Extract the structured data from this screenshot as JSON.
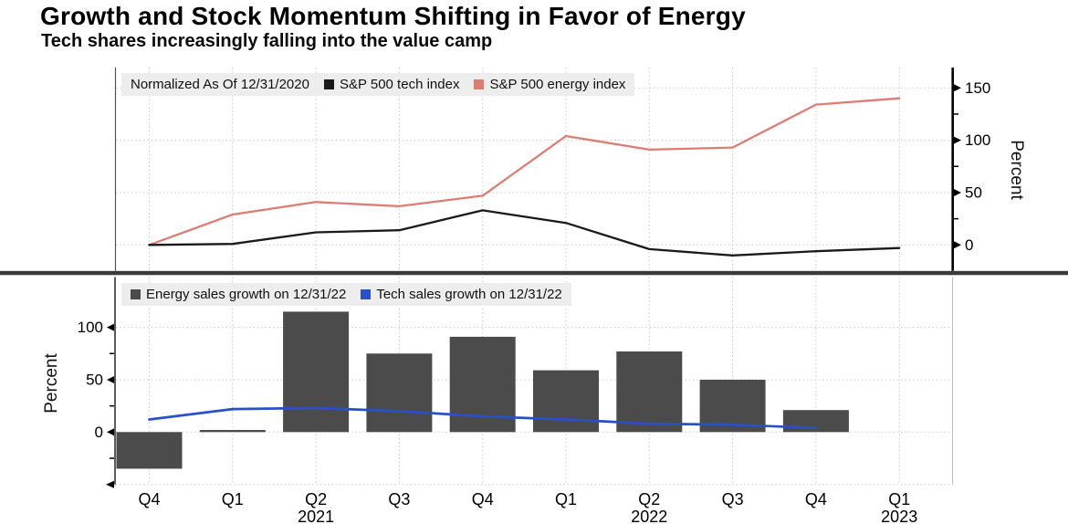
{
  "header": {
    "title": "Growth and Stock Momentum Shifting in Favor of Energy",
    "subtitle": "Tech shares increasingly falling into the value camp"
  },
  "x_axis": {
    "quarters": [
      "Q4",
      "Q1",
      "Q2",
      "Q3",
      "Q4",
      "Q1",
      "Q2",
      "Q3",
      "Q4",
      "Q1"
    ],
    "years": [
      {
        "i": 2,
        "label": "2021"
      },
      {
        "i": 6,
        "label": "2022"
      },
      {
        "i": 9,
        "label": "2023"
      }
    ]
  },
  "styles": {
    "legend_bg": "#ededed",
    "separator": "#3a3a3a",
    "grid": "#c9c9c9",
    "axis_dark": "#000000",
    "spine_thin": "#555555",
    "spine_light": "#c0c0c0"
  },
  "chart_data": [
    {
      "type": "line",
      "panel": "top",
      "note": "Normalized As Of 12/31/2020",
      "x": [
        "Q4 2020",
        "Q1 2021",
        "Q2 2021",
        "Q3 2021",
        "Q4 2021",
        "Q1 2022",
        "Q2 2022",
        "Q3 2022",
        "Q4 2022",
        "Q1 2023"
      ],
      "series": [
        {
          "name": "S&P 500 tech index",
          "color": "#1a1a1a",
          "values": [
            0,
            1,
            12,
            14,
            33,
            21,
            -4,
            -10,
            -6,
            -3
          ]
        },
        {
          "name": "S&P 500 energy index",
          "color": "#df7c72",
          "values": [
            0,
            29,
            41,
            37,
            47,
            104,
            91,
            93,
            134,
            140
          ]
        }
      ],
      "ylabel": "Percent",
      "ylim": [
        -25,
        170
      ],
      "yticks": [
        0,
        50,
        100,
        150
      ],
      "yticks_minor": [
        25,
        75,
        125
      ],
      "axis_side": "right",
      "legend_position": "top-left",
      "grid": "dotted"
    },
    {
      "type": "bar+line",
      "panel": "bottom",
      "x": [
        "Q4 2020",
        "Q1 2021",
        "Q2 2021",
        "Q3 2021",
        "Q4 2021",
        "Q1 2022",
        "Q2 2022",
        "Q3 2022",
        "Q4 2022",
        "Q1 2023"
      ],
      "series": [
        {
          "name": "Energy sales growth on 12/31/22",
          "type": "bar",
          "color": "#4b4b4b",
          "values": [
            -35,
            2,
            115,
            75,
            91,
            59,
            77,
            50,
            21,
            null
          ]
        },
        {
          "name": "Tech sales growth on 12/31/22",
          "type": "line",
          "color": "#2950c8",
          "values": [
            12,
            22,
            23,
            20,
            15,
            12,
            8,
            7,
            4,
            null
          ]
        }
      ],
      "ylabel": "Percent",
      "ylim": [
        -50,
        148
      ],
      "yticks": [
        0,
        50,
        100
      ],
      "yticks_minor": [
        -25,
        25,
        75
      ],
      "axis_side": "left",
      "legend_position": "top-left",
      "grid": "dotted"
    }
  ]
}
